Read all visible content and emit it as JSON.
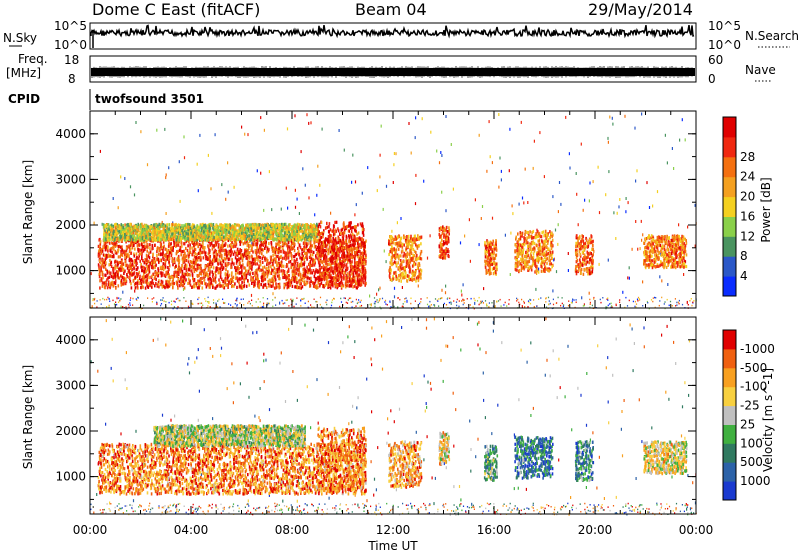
{
  "header": {
    "title": "Dome C East (fitACF)",
    "beam": "Beam 04",
    "date": "29/May/2014"
  },
  "top_panels": {
    "nsky_label": "N.Sky",
    "nsearch_label": "N.Search",
    "nsky_ticks": [
      "10^5",
      "10^0"
    ],
    "nsearch_ticks": [
      "10^5",
      "10^0"
    ],
    "freq_label": "Freq.",
    "freq_unit": "[MHz]",
    "freq_ticks": [
      "18",
      "8"
    ],
    "nave_label": "Nave",
    "nave_ticks": [
      "60",
      "0"
    ],
    "cpid_label": "CPID",
    "cpid_value": "twofsound 3501"
  },
  "chart_data": [
    {
      "type": "heatmap",
      "name": "power",
      "ylabel": "Slant Range [km]",
      "xlabel": "",
      "x_range_hours": [
        0,
        24
      ],
      "ylim": [
        180,
        4500
      ],
      "y_ticks": [
        1000,
        2000,
        3000,
        4000
      ],
      "colorbar_label": "Power [dB]",
      "colorbar_ticks": [
        "4",
        "8",
        "12",
        "16",
        "20",
        "24",
        "28"
      ],
      "colorbar_colors": [
        "#0a2dff",
        "#2b58c8",
        "#4a9460",
        "#8ad04a",
        "#f4d020",
        "#f4a020",
        "#f47010",
        "#f02810",
        "#e00000"
      ],
      "echo_patches": [
        {
          "t0": 0.3,
          "t1": 10.9,
          "r0": 650,
          "r1": 1750,
          "level": 0.85
        },
        {
          "t0": 0.5,
          "t1": 9.0,
          "r0": 1700,
          "r1": 2050,
          "level": 0.45
        },
        {
          "t0": 9.0,
          "t1": 10.9,
          "r0": 700,
          "r1": 2100,
          "level": 0.9
        },
        {
          "t0": 11.8,
          "t1": 13.1,
          "r0": 800,
          "r1": 1800,
          "level": 0.7
        },
        {
          "t0": 13.8,
          "t1": 14.2,
          "r0": 1300,
          "r1": 2000,
          "level": 0.8
        },
        {
          "t0": 15.6,
          "t1": 16.1,
          "r0": 950,
          "r1": 1700,
          "level": 0.75
        },
        {
          "t0": 16.8,
          "t1": 18.3,
          "r0": 1000,
          "r1": 1900,
          "level": 0.7
        },
        {
          "t0": 19.2,
          "t1": 19.9,
          "r0": 950,
          "r1": 1800,
          "level": 0.75
        },
        {
          "t0": 21.9,
          "t1": 23.6,
          "r0": 1100,
          "r1": 1800,
          "level": 0.7
        }
      ]
    },
    {
      "type": "heatmap",
      "name": "velocity",
      "ylabel": "Slant Range [km]",
      "xlabel": "Time UT",
      "x_range_hours": [
        0,
        24
      ],
      "x_ticks": [
        "00:00",
        "04:00",
        "08:00",
        "12:00",
        "16:00",
        "20:00",
        "00:00"
      ],
      "ylim": [
        180,
        4500
      ],
      "y_ticks": [
        1000,
        2000,
        3000,
        4000
      ],
      "colorbar_label": "Velocity [m s^-1]",
      "colorbar_ticks": [
        "1000",
        "500",
        "100",
        "25",
        "-25",
        "-100",
        "-500",
        "-1000"
      ],
      "colorbar_colors": [
        "#1a3ad0",
        "#2c62a8",
        "#307a60",
        "#40b040",
        "#c0c0c0",
        "#f8d040",
        "#f8a020",
        "#f06010",
        "#e00000"
      ],
      "echo_patches": [
        {
          "t0": 0.3,
          "t1": 10.9,
          "r0": 650,
          "r1": 1750,
          "level": 0.8
        },
        {
          "t0": 2.5,
          "t1": 8.5,
          "r0": 1700,
          "r1": 2150,
          "level": 0.5
        },
        {
          "t0": 9.0,
          "t1": 10.9,
          "r0": 700,
          "r1": 2100,
          "level": 0.8
        },
        {
          "t0": 11.8,
          "t1": 13.1,
          "r0": 800,
          "r1": 1800,
          "level": 0.75
        },
        {
          "t0": 13.8,
          "t1": 14.2,
          "r0": 1300,
          "r1": 2000,
          "level": 0.6
        },
        {
          "t0": 15.6,
          "t1": 16.1,
          "r0": 950,
          "r1": 1700,
          "level": 0.35
        },
        {
          "t0": 16.8,
          "t1": 18.3,
          "r0": 1000,
          "r1": 1900,
          "level": 0.2
        },
        {
          "t0": 19.2,
          "t1": 19.9,
          "r0": 950,
          "r1": 1800,
          "level": 0.25
        },
        {
          "t0": 21.9,
          "t1": 23.6,
          "r0": 1100,
          "r1": 1800,
          "level": 0.6
        }
      ]
    }
  ]
}
